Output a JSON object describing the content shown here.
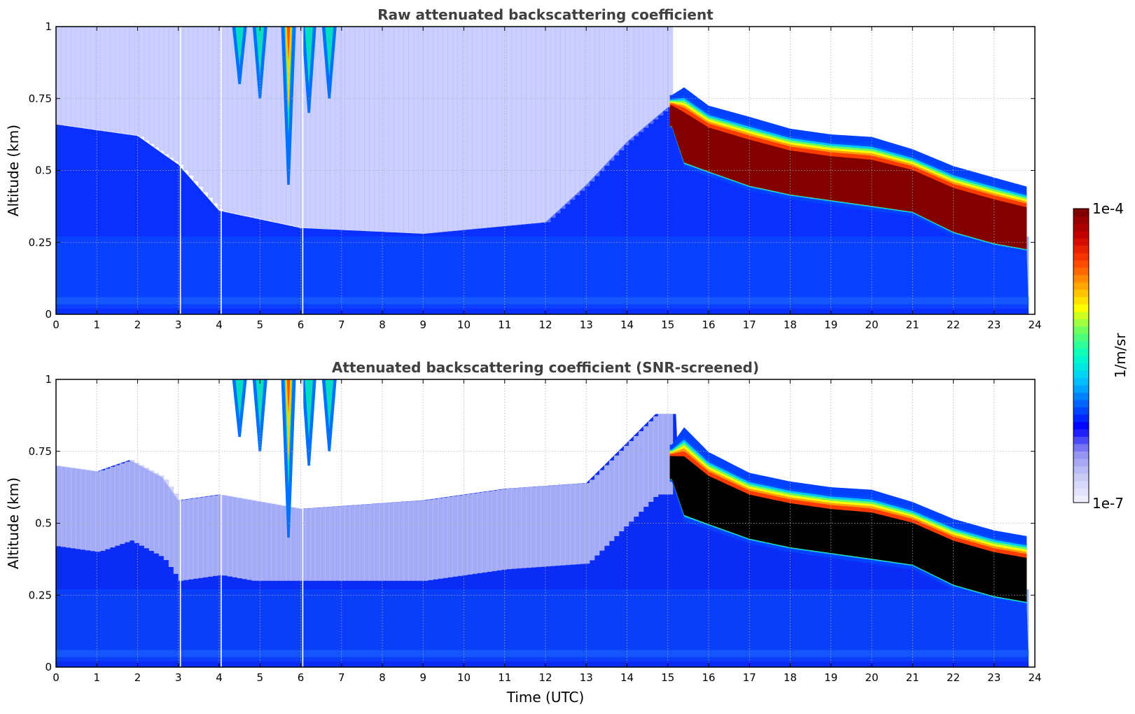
{
  "chart_data": [
    {
      "type": "heatmap",
      "title": "Raw attenuated backscattering coefficient",
      "ylabel": "Altitude (km)",
      "xlabel": "",
      "xlim": [
        0,
        24
      ],
      "ylim": [
        0,
        1
      ],
      "x_ticks": [
        "0",
        "1",
        "2",
        "3",
        "4",
        "5",
        "6",
        "7",
        "8",
        "9",
        "10",
        "11",
        "12",
        "13",
        "14",
        "15",
        "16",
        "17",
        "18",
        "19",
        "20",
        "21",
        "22",
        "23",
        "24"
      ],
      "y_ticks": [
        "0",
        "0.25",
        "0.5",
        "0.75",
        "1"
      ],
      "grid": true,
      "data_extent_x": [
        0,
        23.85
      ],
      "layer_top_km": [
        {
          "t": 15.1,
          "v": 0.75
        },
        {
          "t": 15.4,
          "v": 0.76
        },
        {
          "t": 16,
          "v": 0.7
        },
        {
          "t": 17,
          "v": 0.66
        },
        {
          "t": 18,
          "v": 0.62
        },
        {
          "t": 19,
          "v": 0.6
        },
        {
          "t": 20,
          "v": 0.59
        },
        {
          "t": 21,
          "v": 0.55
        },
        {
          "t": 22,
          "v": 0.49
        },
        {
          "t": 23,
          "v": 0.45
        },
        {
          "t": 23.8,
          "v": 0.42
        }
      ],
      "layer_base_km": [
        {
          "t": 15.1,
          "v": 0.65
        },
        {
          "t": 15.4,
          "v": 0.52
        },
        {
          "t": 16,
          "v": 0.49
        },
        {
          "t": 17,
          "v": 0.44
        },
        {
          "t": 18,
          "v": 0.41
        },
        {
          "t": 19,
          "v": 0.39
        },
        {
          "t": 20,
          "v": 0.37
        },
        {
          "t": 21,
          "v": 0.35
        },
        {
          "t": 22,
          "v": 0.28
        },
        {
          "t": 23,
          "v": 0.24
        },
        {
          "t": 23.8,
          "v": 0.22
        }
      ],
      "aerosol_top_km": [
        {
          "t": 0,
          "v": 0.66
        },
        {
          "t": 1,
          "v": 0.64
        },
        {
          "t": 2,
          "v": 0.62
        },
        {
          "t": 3,
          "v": 0.52
        },
        {
          "t": 4,
          "v": 0.36
        },
        {
          "t": 6,
          "v": 0.3
        },
        {
          "t": 9,
          "v": 0.28
        },
        {
          "t": 12,
          "v": 0.32
        },
        {
          "t": 13,
          "v": 0.45
        },
        {
          "t": 14,
          "v": 0.6
        },
        {
          "t": 15,
          "v": 0.72
        }
      ],
      "precipitation_streaks_h": [
        4.5,
        5.0,
        5.7,
        6.2,
        6.7
      ],
      "gap_lines_h": [
        3.05,
        4.05,
        6.05
      ]
    },
    {
      "type": "heatmap",
      "title": "Attenuated backscattering coefficient (SNR-screened)",
      "ylabel": "Altitude (km)",
      "xlabel": "Time (UTC)",
      "xlim": [
        0,
        24
      ],
      "ylim": [
        0,
        1
      ],
      "x_ticks": [
        "0",
        "1",
        "2",
        "3",
        "4",
        "5",
        "6",
        "7",
        "8",
        "9",
        "10",
        "11",
        "12",
        "13",
        "14",
        "15",
        "16",
        "17",
        "18",
        "19",
        "20",
        "21",
        "22",
        "23",
        "24"
      ],
      "y_ticks": [
        "0",
        "0.25",
        "0.5",
        "0.75",
        "1"
      ],
      "grid": true,
      "data_extent_x": [
        0,
        23.85
      ],
      "layer_top_km": [
        {
          "t": 15.1,
          "v": 0.76
        },
        {
          "t": 15.4,
          "v": 0.8
        },
        {
          "t": 16,
          "v": 0.72
        },
        {
          "t": 17,
          "v": 0.65
        },
        {
          "t": 18,
          "v": 0.62
        },
        {
          "t": 19,
          "v": 0.6
        },
        {
          "t": 20,
          "v": 0.59
        },
        {
          "t": 21,
          "v": 0.55
        },
        {
          "t": 22,
          "v": 0.49
        },
        {
          "t": 23,
          "v": 0.45
        },
        {
          "t": 23.8,
          "v": 0.43
        }
      ],
      "layer_base_km": [
        {
          "t": 15.1,
          "v": 0.65
        },
        {
          "t": 15.4,
          "v": 0.52
        },
        {
          "t": 16,
          "v": 0.49
        },
        {
          "t": 17,
          "v": 0.44
        },
        {
          "t": 18,
          "v": 0.41
        },
        {
          "t": 19,
          "v": 0.39
        },
        {
          "t": 20,
          "v": 0.37
        },
        {
          "t": 21,
          "v": 0.35
        },
        {
          "t": 22,
          "v": 0.28
        },
        {
          "t": 23,
          "v": 0.24
        },
        {
          "t": 23.8,
          "v": 0.22
        }
      ],
      "aerosol_top_km": [
        {
          "t": 0,
          "v": 0.7
        },
        {
          "t": 1,
          "v": 0.68
        },
        {
          "t": 1.8,
          "v": 0.72
        },
        {
          "t": 2.6,
          "v": 0.66
        },
        {
          "t": 3,
          "v": 0.58
        },
        {
          "t": 4,
          "v": 0.6
        },
        {
          "t": 6,
          "v": 0.55
        },
        {
          "t": 9,
          "v": 0.58
        },
        {
          "t": 11,
          "v": 0.62
        },
        {
          "t": 13,
          "v": 0.64
        },
        {
          "t": 14,
          "v": 0.78
        },
        {
          "t": 14.7,
          "v": 0.88
        }
      ],
      "precipitation_streaks_h": [
        4.5,
        5.0,
        5.7,
        6.2,
        6.7
      ],
      "gap_lines_h": [
        3.05,
        4.05,
        6.05
      ]
    }
  ],
  "colorbar": {
    "label": "1/m/sr",
    "max_label": "1e-4",
    "min_label": "1e-7",
    "scale": "log",
    "range": [
      1e-07,
      0.0001
    ],
    "colors": [
      "#eeeeff",
      "#c8c8f5",
      "#8c8cf0",
      "#0000ff",
      "#0064ff",
      "#00c8ff",
      "#00ffc8",
      "#64ff64",
      "#ffff00",
      "#ffa000",
      "#ff3c00",
      "#c80000",
      "#800000"
    ]
  }
}
